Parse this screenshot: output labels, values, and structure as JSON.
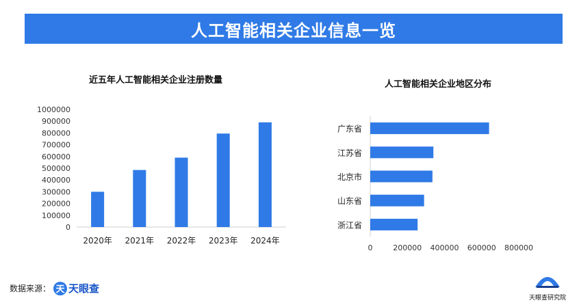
{
  "banner": {
    "title": "人工智能相关企业信息一览"
  },
  "source": {
    "label": "数据来源：",
    "brand_name": "天眼查",
    "brand_mark": "天"
  },
  "corner": {
    "caption": "天眼查研究院"
  },
  "colors": {
    "accent": "#2f7ae6",
    "bar": "#2f7ae6"
  },
  "chart_data": [
    {
      "type": "bar",
      "title": "近五年人工智能相关企业注册数量",
      "categories": [
        "2020年",
        "2021年",
        "2022年",
        "2023年",
        "2024年"
      ],
      "values": [
        300000,
        485000,
        590000,
        795000,
        890000
      ],
      "ylim": [
        0,
        1000000
      ],
      "yticks": [
        "0",
        "100000",
        "200000",
        "300000",
        "400000",
        "500000",
        "600000",
        "700000",
        "800000",
        "900000",
        "1000000"
      ],
      "xlabel": "",
      "ylabel": "",
      "grid": false
    },
    {
      "type": "bar",
      "orientation": "horizontal",
      "title": "人工智能相关企业地区分布",
      "categories": [
        "广东省",
        "江苏省",
        "北京市",
        "山东省",
        "浙江省"
      ],
      "values": [
        640000,
        340000,
        335000,
        290000,
        255000
      ],
      "xlim": [
        0,
        800000
      ],
      "xticks": [
        "0",
        "200000",
        "400000",
        "600000",
        "800000"
      ],
      "xlabel": "",
      "ylabel": "",
      "grid": false
    }
  ]
}
